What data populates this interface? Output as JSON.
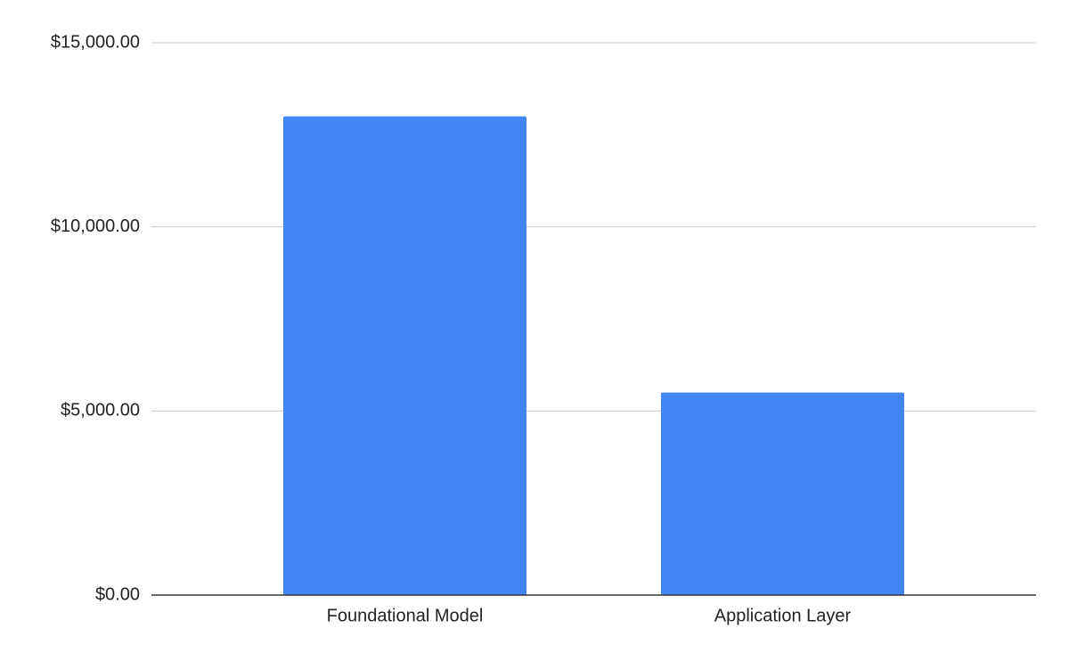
{
  "chart_data": {
    "type": "bar",
    "categories": [
      "Foundational Model",
      "Application Layer"
    ],
    "values": [
      13000,
      5500
    ],
    "color": "#4285f4",
    "ylim": [
      0,
      15000
    ],
    "yticks": [
      {
        "value": 0,
        "label": "$0.00"
      },
      {
        "value": 5000,
        "label": "$5,000.00"
      },
      {
        "value": 10000,
        "label": "$10,000.00"
      },
      {
        "value": 15000,
        "label": "$15,000.00"
      }
    ],
    "grid": true
  }
}
